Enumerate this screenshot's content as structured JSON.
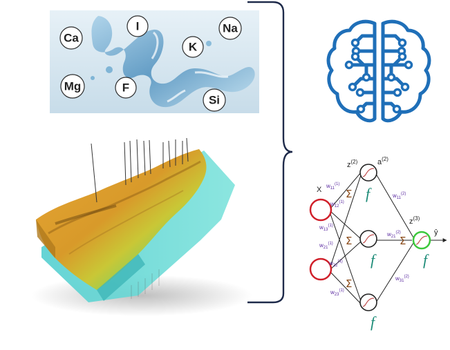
{
  "elements": [
    {
      "symbol": "Ca"
    },
    {
      "symbol": "I"
    },
    {
      "symbol": "K"
    },
    {
      "symbol": "Na"
    },
    {
      "symbol": "Mg"
    },
    {
      "symbol": "F"
    },
    {
      "symbol": "Si"
    }
  ],
  "network": {
    "input_label": "X",
    "output_label": "ŷ",
    "activation": "f",
    "sum": "Σ",
    "z2": "z",
    "z2_sup": "(2)",
    "a2": "a",
    "a2_sup": "(2)",
    "z3": "z",
    "z3_sup": "(3)",
    "weights_in": [
      {
        "base": "w",
        "sub": "11",
        "sup": "(1)"
      },
      {
        "base": "w",
        "sub": "12",
        "sup": "(1)"
      },
      {
        "base": "w",
        "sub": "13",
        "sup": "(1)"
      },
      {
        "base": "w",
        "sub": "21",
        "sup": "(1)"
      },
      {
        "base": "w",
        "sub": "22",
        "sup": "(1)"
      },
      {
        "base": "w",
        "sub": "23",
        "sup": "(1)"
      }
    ],
    "weights_out": [
      {
        "base": "w",
        "sub": "11",
        "sup": "(2)"
      },
      {
        "base": "w",
        "sub": "21",
        "sup": "(2)"
      },
      {
        "base": "w",
        "sub": "31",
        "sup": "(2)"
      }
    ]
  },
  "colors": {
    "brain": "#1f6fb8",
    "input_node": "#d0202a",
    "output_node": "#3cc83c",
    "water": "#cfe3ef",
    "terrain_top": "#e3a332",
    "terrain_water": "#5fd9d2"
  }
}
